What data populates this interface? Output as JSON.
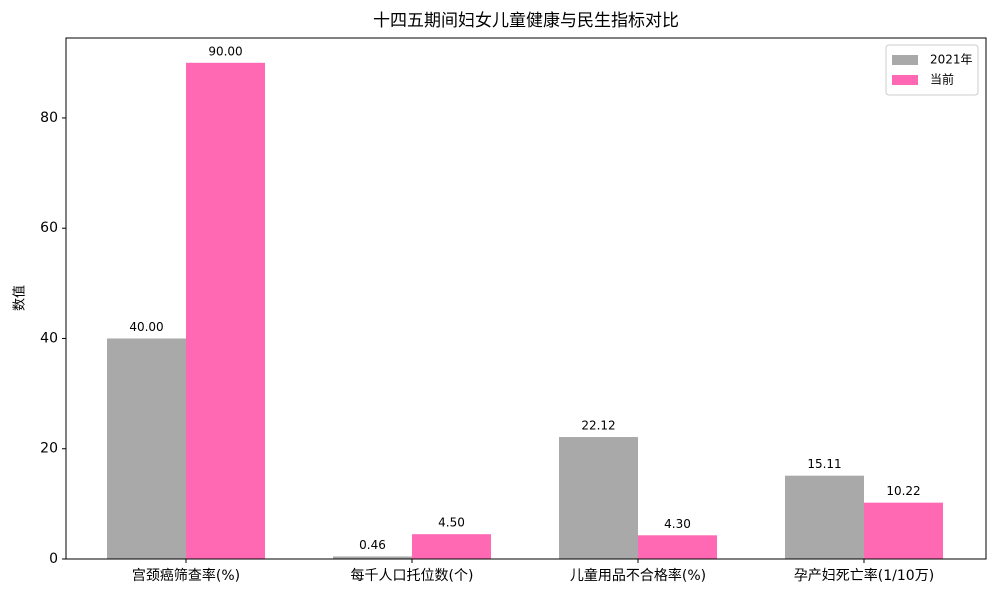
{
  "chart_data": {
    "type": "bar",
    "title": "十四五期间妇女儿童健康与民生指标对比",
    "y_label": "数值",
    "categories": [
      "宫颈癌筛查率(%)",
      "每千人口托位数(个)",
      "儿童用品不合格率(%)",
      "孕产妇死亡率(1/10万)"
    ],
    "series": [
      {
        "name": "2021年",
        "color": "#a9a9a9",
        "values": [
          40,
          0.46,
          22.12,
          15.11
        ],
        "value_labels": [
          "40.00",
          "0.46",
          "22.12",
          "15.11"
        ]
      },
      {
        "name": "当前",
        "color": "#ff69b4",
        "values": [
          90,
          4.5,
          4.3,
          10.22
        ],
        "value_labels": [
          "90.00",
          "4.50",
          "4.30",
          "10.22"
        ]
      }
    ],
    "ylim": [
      0,
      94.5
    ],
    "yticks": [
      0,
      20,
      40,
      60,
      80
    ],
    "legend": "upper right"
  }
}
